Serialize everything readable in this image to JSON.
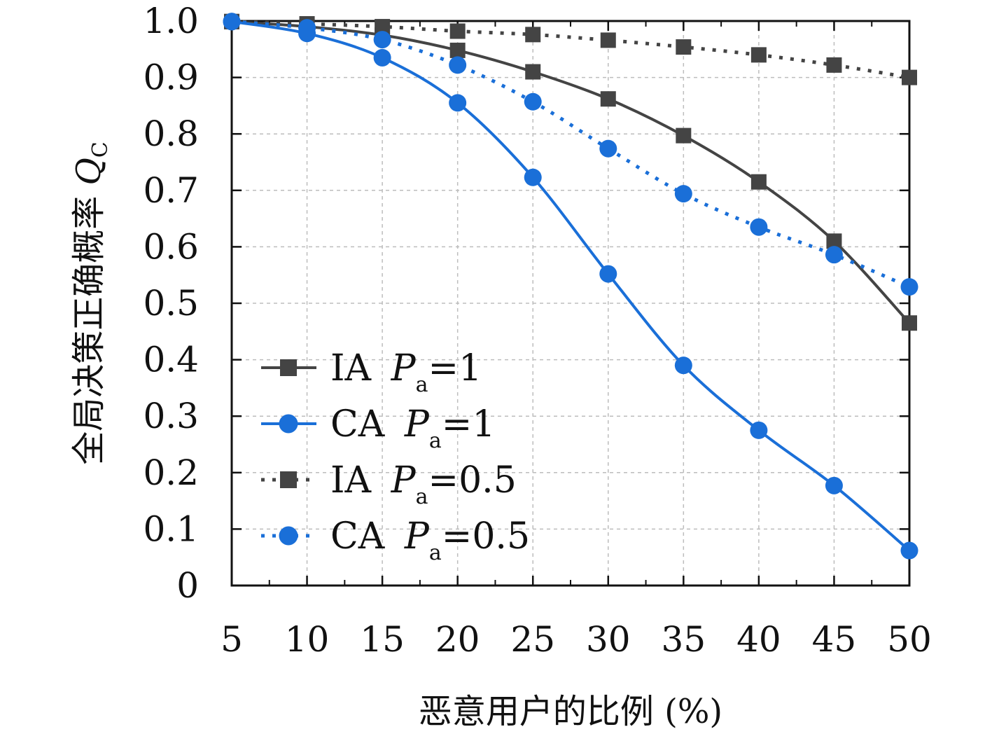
{
  "chart_data": {
    "type": "line",
    "xlabel": "恶意用户的比例 (%)",
    "ylabel": "全局决策正确概率 ",
    "ylabel_symbol": "Q",
    "ylabel_symbol_sub": "C",
    "x": [
      5,
      10,
      15,
      20,
      25,
      30,
      35,
      40,
      45,
      50
    ],
    "xlim": [
      5,
      50
    ],
    "ylim": [
      0,
      1.0
    ],
    "x_ticks": [
      "5",
      "10",
      "15",
      "20",
      "25",
      "30",
      "35",
      "40",
      "45",
      "50"
    ],
    "y_ticks": [
      "0",
      "0.1",
      "0.2",
      "0.3",
      "0.4",
      "0.5",
      "0.6",
      "0.7",
      "0.8",
      "0.9",
      "1.0"
    ],
    "grid": true,
    "legend_position": "left-center",
    "series": [
      {
        "name": "IA Pa=1",
        "legend": {
          "prefix": "IA ",
          "symbol": "P",
          "sub": "a",
          "suffix": "=1"
        },
        "values": [
          0.999,
          0.99,
          0.975,
          0.948,
          0.91,
          0.862,
          0.797,
          0.715,
          0.61,
          0.465
        ],
        "color": "#444444",
        "marker": "square",
        "line": "solid"
      },
      {
        "name": "CA Pa=1",
        "legend": {
          "prefix": "CA ",
          "symbol": "P",
          "sub": "a",
          "suffix": "=1"
        },
        "values": [
          0.999,
          0.978,
          0.935,
          0.855,
          0.723,
          0.552,
          0.39,
          0.275,
          0.177,
          0.062
        ],
        "color": "#1a6fd8",
        "marker": "circle",
        "line": "solid"
      },
      {
        "name": "IA Pa=0.5",
        "legend": {
          "prefix": "IA ",
          "symbol": "P",
          "sub": "a",
          "suffix": "=0.5"
        },
        "values": [
          0.999,
          0.995,
          0.99,
          0.982,
          0.976,
          0.966,
          0.954,
          0.94,
          0.922,
          0.9
        ],
        "color": "#444444",
        "marker": "square",
        "line": "dotted"
      },
      {
        "name": "CA Pa=0.5",
        "legend": {
          "prefix": "CA ",
          "symbol": "P",
          "sub": "a",
          "suffix": "=0.5"
        },
        "values": [
          0.999,
          0.988,
          0.967,
          0.922,
          0.857,
          0.774,
          0.694,
          0.635,
          0.586,
          0.529
        ],
        "color": "#1a6fd8",
        "marker": "circle",
        "line": "dotted"
      }
    ]
  }
}
